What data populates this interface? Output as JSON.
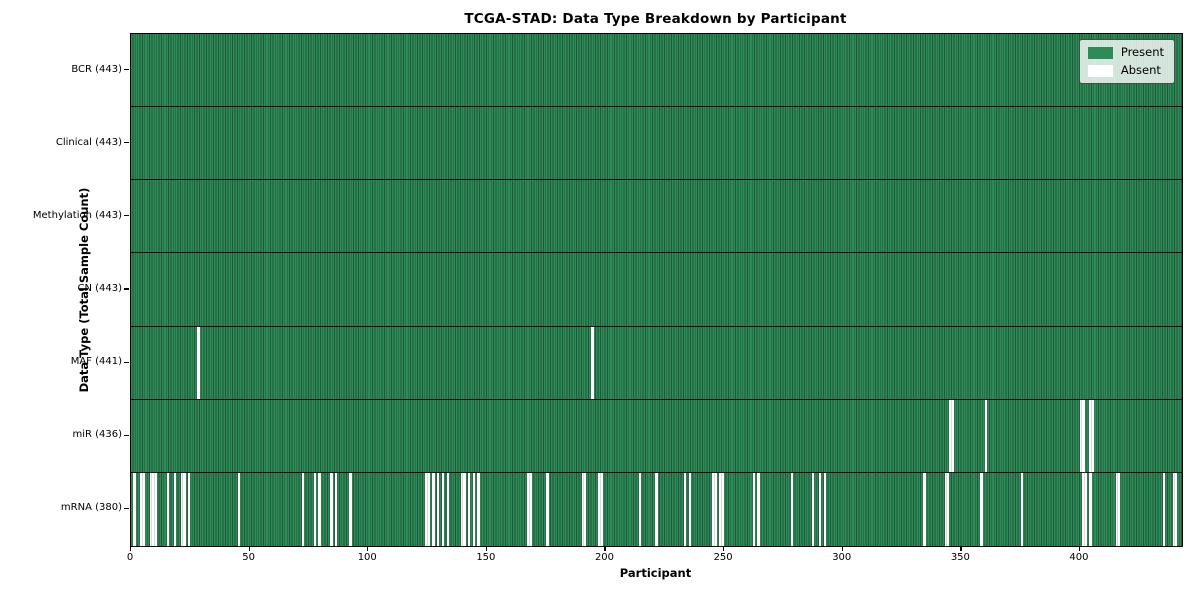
{
  "chart_data": {
    "type": "heatmap",
    "title": "TCGA-STAD: Data Type Breakdown by Participant",
    "xlabel": "Participant",
    "ylabel": "Data Type (Total Sample Count)",
    "x_ticks": [
      0,
      50,
      100,
      150,
      200,
      250,
      300,
      350,
      400
    ],
    "n_participants": 443,
    "x_range": [
      0,
      443
    ],
    "legend_position": "upper right",
    "grid": false,
    "colors": {
      "present": "#2e8b57",
      "present_edge": "#1e5a39",
      "absent": "#ffffff",
      "row_divider": "#000000",
      "legend_background": "#e9eee8"
    },
    "legend": [
      {
        "label": "Present",
        "color": "#2e8b57"
      },
      {
        "label": "Absent",
        "color": "#ffffff"
      }
    ],
    "rows": [
      {
        "data_type": "BCR",
        "label": "BCR (443)",
        "count": 443,
        "absent_participants": []
      },
      {
        "data_type": "Clinical",
        "label": "Clinical (443)",
        "count": 443,
        "absent_participants": []
      },
      {
        "data_type": "Methylation",
        "label": "Methylation (443)",
        "count": 443,
        "absent_participants": []
      },
      {
        "data_type": "CN",
        "label": "CN (443)",
        "count": 443,
        "absent_participants": []
      },
      {
        "data_type": "MAF",
        "label": "MAF (441)",
        "count": 441,
        "absent_participants": [
          28,
          194
        ]
      },
      {
        "data_type": "miR",
        "label": "miR (436)",
        "count": 436,
        "absent_participants": [
          345,
          346,
          360,
          400,
          401,
          404,
          405
        ]
      },
      {
        "data_type": "mRNA",
        "label": "mRNA (380)",
        "count": 380,
        "absent_participants": [
          1,
          4,
          5,
          8,
          9,
          10,
          15,
          18,
          21,
          22,
          24,
          45,
          72,
          77,
          79,
          84,
          86,
          92,
          124,
          125,
          127,
          129,
          131,
          133,
          139,
          140,
          142,
          144,
          146,
          167,
          168,
          175,
          190,
          191,
          197,
          198,
          214,
          221,
          233,
          235,
          245,
          246,
          248,
          249,
          262,
          264,
          278,
          287,
          290,
          292,
          334,
          343,
          344,
          358,
          375,
          401,
          402,
          404,
          415,
          416,
          435,
          439,
          440
        ]
      }
    ]
  }
}
